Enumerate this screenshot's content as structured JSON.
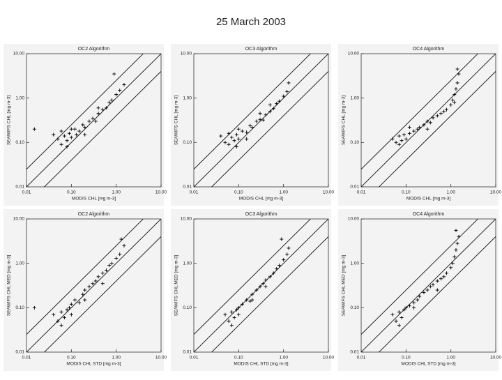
{
  "title": "25 March 2003",
  "chart_data": [
    {
      "type": "scatter",
      "title": "OC2 Algorithm",
      "xlabel": "MODIS CHL [mg m-3]",
      "ylabel": "SEAWIFS CHL [mg m-3]",
      "log_scale": true,
      "color": "#000000",
      "reference_ratios": [
        0.4,
        1,
        2.5
      ],
      "xlim": [
        0.01,
        10
      ],
      "ylim": [
        0.01,
        10
      ],
      "xticks": [
        {
          "value": 0.01,
          "label": "0.01"
        },
        {
          "value": 0.1,
          "label": "0.10"
        },
        {
          "value": 1,
          "label": "1.00"
        },
        {
          "value": 10,
          "label": "10.00"
        }
      ],
      "yticks": [
        {
          "value": 0.01,
          "label": "0.01"
        },
        {
          "value": 0.1,
          "label": "0.10"
        },
        {
          "value": 1,
          "label": "1.00"
        },
        {
          "value": 10,
          "label": "10.00"
        }
      ],
      "x": [
        0.015,
        0.04,
        0.05,
        0.06,
        0.07,
        0.08,
        0.09,
        0.1,
        0.12,
        0.15,
        0.18,
        0.2,
        0.25,
        0.3,
        0.35,
        0.4,
        0.5,
        0.6,
        0.7,
        0.8,
        1.0,
        1.2,
        1.5,
        0.06,
        0.1,
        0.2,
        0.4,
        0.08,
        0.13,
        0.9
      ],
      "y": [
        0.2,
        0.15,
        0.12,
        0.18,
        0.14,
        0.11,
        0.16,
        0.13,
        0.2,
        0.18,
        0.25,
        0.22,
        0.3,
        0.35,
        0.3,
        0.45,
        0.55,
        0.6,
        0.8,
        0.9,
        1.2,
        1.5,
        2.0,
        0.09,
        0.2,
        0.15,
        0.6,
        0.08,
        0.15,
        3.5
      ]
    },
    {
      "type": "scatter",
      "title": "OC3 Algorithm",
      "xlabel": "MODIS CHL [mg m-3]",
      "ylabel": "SEAWIFS CHL [mg m-3]",
      "log_scale": true,
      "color": "#000000",
      "reference_ratios": [
        0.4,
        1,
        2.5
      ],
      "xlim": [
        0.01,
        10
      ],
      "ylim": [
        0.01,
        10
      ],
      "xticks": [
        {
          "value": 0.01,
          "label": "0.01"
        },
        {
          "value": 0.1,
          "label": "0.10"
        },
        {
          "value": 1,
          "label": "1.00"
        },
        {
          "value": 10,
          "label": "10.00"
        }
      ],
      "yticks": [
        {
          "value": 0.01,
          "label": "0.01"
        },
        {
          "value": 0.1,
          "label": "0.10"
        },
        {
          "value": 1,
          "label": "1.00"
        },
        {
          "value": 10,
          "label": "10.00"
        }
      ],
      "x": [
        0.04,
        0.05,
        0.06,
        0.07,
        0.08,
        0.09,
        0.1,
        0.12,
        0.15,
        0.18,
        0.2,
        0.25,
        0.3,
        0.35,
        0.4,
        0.5,
        0.6,
        0.7,
        0.8,
        1.0,
        1.2,
        1.3,
        0.06,
        0.1,
        0.15,
        0.3,
        0.5,
        0.09
      ],
      "y": [
        0.14,
        0.1,
        0.16,
        0.13,
        0.11,
        0.15,
        0.12,
        0.18,
        0.17,
        0.24,
        0.22,
        0.3,
        0.33,
        0.32,
        0.42,
        0.5,
        0.58,
        0.75,
        0.85,
        1.1,
        1.4,
        2.2,
        0.09,
        0.2,
        0.12,
        0.45,
        0.7,
        0.08
      ]
    },
    {
      "type": "scatter",
      "title": "OC4 Algorithm",
      "xlabel": "MODIS CHL [mg m-3]",
      "ylabel": "SEAWIFS CHL [mg m-3]",
      "log_scale": true,
      "color": "#000000",
      "reference_ratios": [
        0.4,
        1,
        2.5
      ],
      "xlim": [
        0.01,
        10
      ],
      "ylim": [
        0.01,
        10
      ],
      "xticks": [
        {
          "value": 0.01,
          "label": "0.01"
        },
        {
          "value": 0.1,
          "label": "0.10"
        },
        {
          "value": 1,
          "label": "1.00"
        },
        {
          "value": 10,
          "label": "10.00"
        }
      ],
      "yticks": [
        {
          "value": 0.01,
          "label": "0.01"
        },
        {
          "value": 0.1,
          "label": "0.10"
        },
        {
          "value": 1,
          "label": "1.00"
        },
        {
          "value": 10,
          "label": "10.00"
        }
      ],
      "x": [
        0.05,
        0.06,
        0.07,
        0.08,
        0.09,
        0.1,
        0.12,
        0.15,
        0.18,
        0.2,
        0.25,
        0.3,
        0.35,
        0.4,
        0.5,
        0.6,
        0.7,
        0.8,
        1.0,
        1.1,
        1.2,
        1.3,
        1.4,
        1.5,
        0.07,
        0.12,
        0.3,
        1.2,
        1.4
      ],
      "y": [
        0.12,
        0.1,
        0.14,
        0.11,
        0.15,
        0.12,
        0.16,
        0.18,
        0.2,
        0.22,
        0.25,
        0.3,
        0.28,
        0.36,
        0.4,
        0.45,
        0.5,
        0.55,
        0.7,
        0.9,
        1.2,
        1.6,
        2.2,
        3.5,
        0.09,
        0.22,
        0.2,
        0.8,
        4.5
      ]
    },
    {
      "type": "scatter",
      "title": "OC2 Algorithm",
      "xlabel": "MODIS CHL STD [mg m-3]",
      "ylabel": "SEAWIFS CHL MED [mg m-3]",
      "log_scale": true,
      "color": "#000000",
      "reference_ratios": [
        0.4,
        1,
        2.5
      ],
      "xlim": [
        0.01,
        10
      ],
      "ylim": [
        0.01,
        10
      ],
      "xticks": [
        {
          "value": 0.01,
          "label": "0.01"
        },
        {
          "value": 0.1,
          "label": "0.10"
        },
        {
          "value": 1,
          "label": "1.00"
        },
        {
          "value": 10,
          "label": "10.00"
        }
      ],
      "yticks": [
        {
          "value": 0.01,
          "label": "0.01"
        },
        {
          "value": 0.1,
          "label": "0.10"
        },
        {
          "value": 1,
          "label": "1.00"
        },
        {
          "value": 10,
          "label": "10.00"
        }
      ],
      "x": [
        0.015,
        0.04,
        0.05,
        0.06,
        0.07,
        0.08,
        0.09,
        0.1,
        0.12,
        0.15,
        0.18,
        0.2,
        0.25,
        0.3,
        0.35,
        0.4,
        0.5,
        0.6,
        0.7,
        0.8,
        1.0,
        1.2,
        1.5,
        0.06,
        0.1,
        0.2,
        0.5,
        1.3
      ],
      "y": [
        0.1,
        0.07,
        0.05,
        0.08,
        0.06,
        0.09,
        0.1,
        0.12,
        0.15,
        0.13,
        0.2,
        0.25,
        0.3,
        0.35,
        0.4,
        0.5,
        0.6,
        0.7,
        0.9,
        1.0,
        1.3,
        1.6,
        2.5,
        0.04,
        0.07,
        0.15,
        0.35,
        3.5
      ]
    },
    {
      "type": "scatter",
      "title": "OC3 Algorithm",
      "xlabel": "MODIS CHL STD [mg m-3]",
      "ylabel": "SEAWIFS CHL MED [mg m-3]",
      "log_scale": true,
      "color": "#000000",
      "reference_ratios": [
        0.4,
        1,
        2.5
      ],
      "xlim": [
        0.01,
        10
      ],
      "ylim": [
        0.01,
        10
      ],
      "xticks": [
        {
          "value": 0.01,
          "label": "0.01"
        },
        {
          "value": 0.1,
          "label": "0.10"
        },
        {
          "value": 1,
          "label": "1.00"
        },
        {
          "value": 10,
          "label": "10.00"
        }
      ],
      "yticks": [
        {
          "value": 0.01,
          "label": "0.01"
        },
        {
          "value": 0.1,
          "label": "0.10"
        },
        {
          "value": 1,
          "label": "1.00"
        },
        {
          "value": 10,
          "label": "10.00"
        }
      ],
      "x": [
        0.05,
        0.06,
        0.07,
        0.08,
        0.09,
        0.1,
        0.12,
        0.15,
        0.18,
        0.2,
        0.25,
        0.3,
        0.35,
        0.4,
        0.5,
        0.6,
        0.7,
        0.8,
        1.0,
        1.2,
        1.3,
        0.07,
        0.1,
        0.2,
        0.4,
        0.9
      ],
      "y": [
        0.07,
        0.05,
        0.08,
        0.06,
        0.09,
        0.1,
        0.12,
        0.15,
        0.14,
        0.2,
        0.25,
        0.3,
        0.35,
        0.42,
        0.5,
        0.6,
        0.75,
        0.9,
        1.2,
        1.6,
        2.2,
        0.04,
        0.07,
        0.15,
        0.3,
        3.5
      ]
    },
    {
      "type": "scatter",
      "title": "OC4 Algorithm",
      "xlabel": "MODIS CHL STD [mg m-3]",
      "ylabel": "SEAWIFS CHL MED [mg m-3]",
      "log_scale": true,
      "color": "#000000",
      "reference_ratios": [
        0.4,
        1,
        2.5
      ],
      "xlim": [
        0.01,
        10
      ],
      "ylim": [
        0.01,
        10
      ],
      "xticks": [
        {
          "value": 0.01,
          "label": "0.01"
        },
        {
          "value": 0.1,
          "label": "0.10"
        },
        {
          "value": 1,
          "label": "1.00"
        },
        {
          "value": 10,
          "label": "10.00"
        }
      ],
      "yticks": [
        {
          "value": 0.01,
          "label": "0.01"
        },
        {
          "value": 0.1,
          "label": "0.10"
        },
        {
          "value": 1,
          "label": "1.00"
        },
        {
          "value": 10,
          "label": "10.00"
        }
      ],
      "x": [
        0.05,
        0.06,
        0.07,
        0.08,
        0.09,
        0.1,
        0.12,
        0.15,
        0.18,
        0.2,
        0.25,
        0.3,
        0.35,
        0.4,
        0.5,
        0.6,
        0.7,
        0.8,
        1.0,
        1.1,
        1.2,
        1.3,
        1.4,
        1.5,
        0.07,
        0.15,
        0.5,
        1.3
      ],
      "y": [
        0.07,
        0.05,
        0.08,
        0.06,
        0.09,
        0.1,
        0.11,
        0.13,
        0.15,
        0.18,
        0.22,
        0.25,
        0.3,
        0.33,
        0.4,
        0.45,
        0.5,
        0.6,
        0.8,
        1.0,
        1.4,
        2.0,
        2.8,
        4.0,
        0.04,
        0.1,
        0.25,
        5.5
      ]
    }
  ]
}
